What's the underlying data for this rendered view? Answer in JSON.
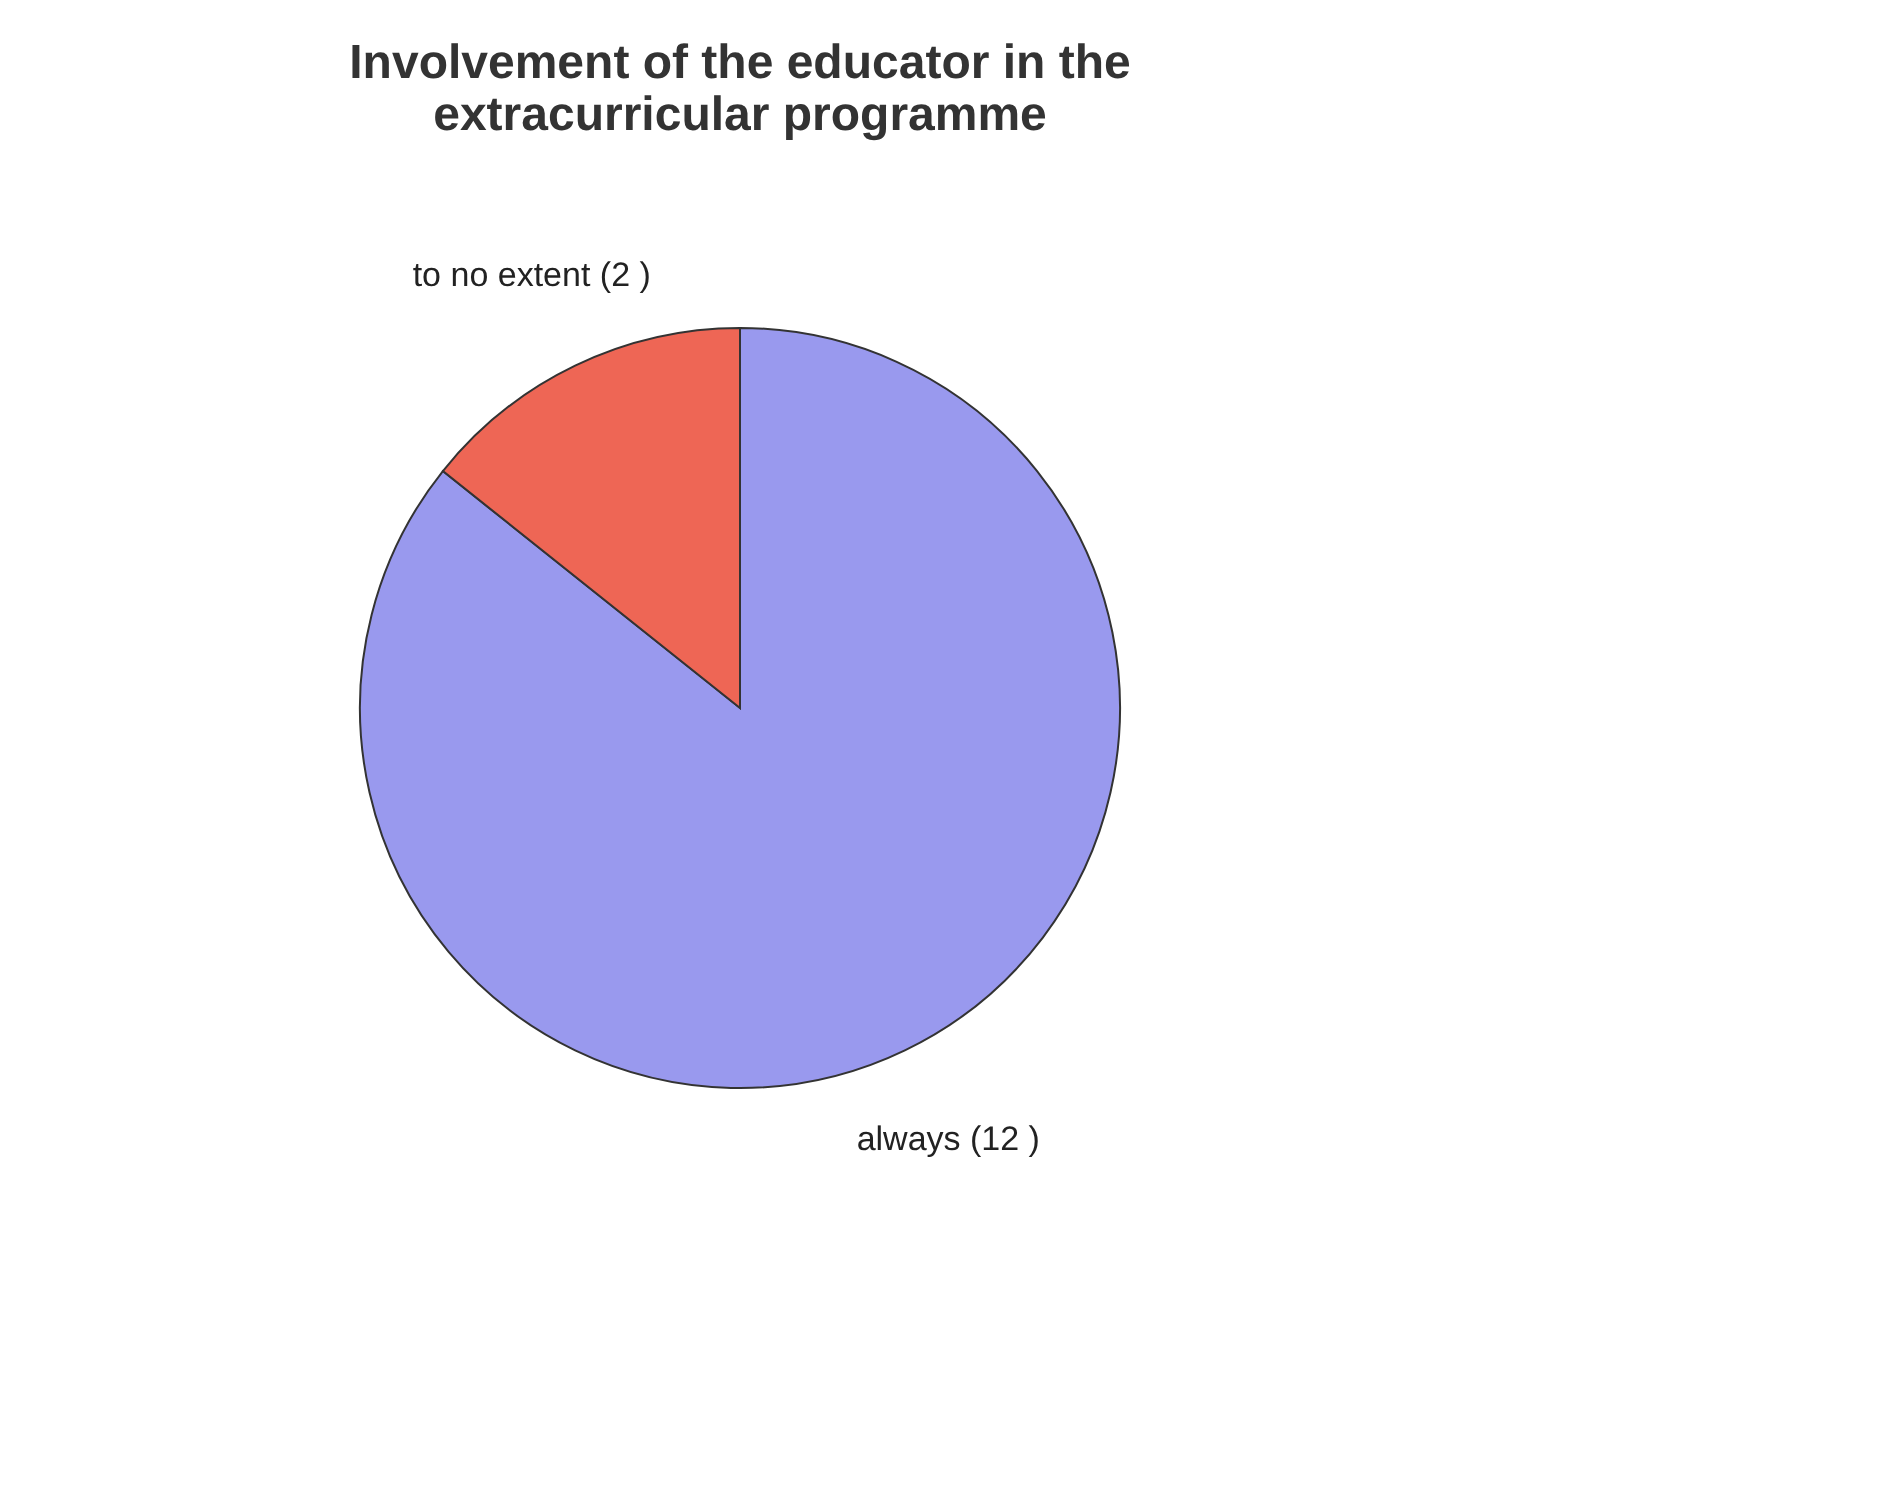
{
  "chart_data": {
    "type": "pie",
    "title": [
      "Involvement of the educator in the",
      "extracurricular programme"
    ],
    "categories": [
      "always",
      "to no extent"
    ],
    "values": [
      12,
      2
    ],
    "value_labels": [
      "(12 )",
      "(2 )"
    ],
    "colors": [
      "#9999ee",
      "#ee6655"
    ],
    "legend": false
  }
}
